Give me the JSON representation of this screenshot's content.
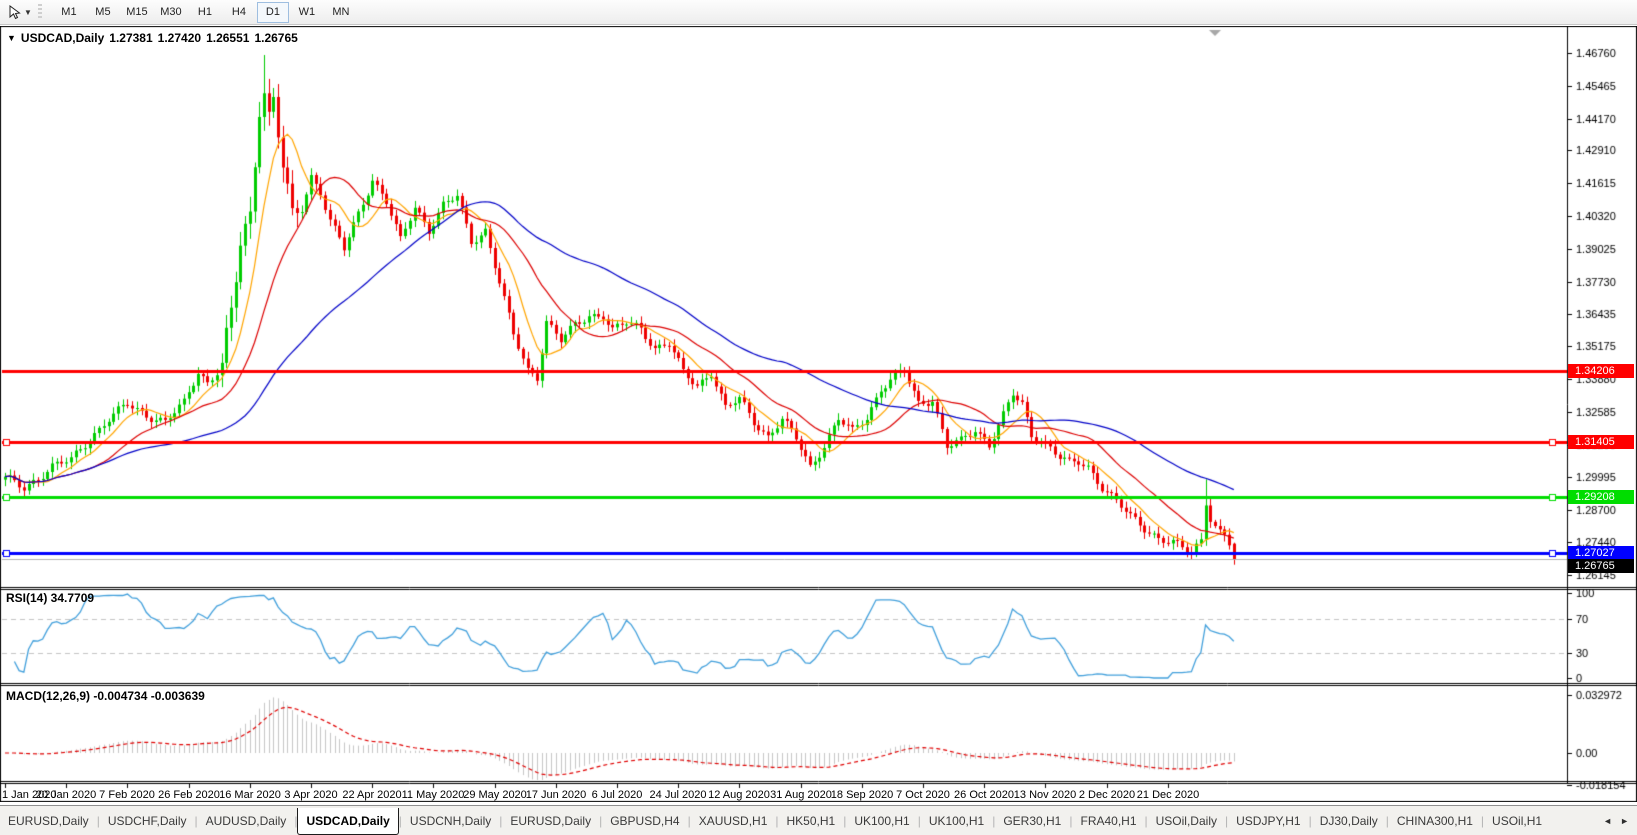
{
  "toolbar": {
    "tool_icon": "pointer-cursor",
    "timeframes": [
      {
        "label": "M1",
        "active": false
      },
      {
        "label": "M5",
        "active": false
      },
      {
        "label": "M15",
        "active": false
      },
      {
        "label": "M30",
        "active": false
      },
      {
        "label": "H1",
        "active": false
      },
      {
        "label": "H4",
        "active": false
      },
      {
        "label": "D1",
        "active": true
      },
      {
        "label": "W1",
        "active": false
      },
      {
        "label": "MN",
        "active": false
      }
    ]
  },
  "chart": {
    "symbol_period": "USDCAD,Daily",
    "open": "1.27381",
    "high": "1.27420",
    "low": "1.26551",
    "close": "1.26765"
  },
  "chart_data": {
    "type": "candlestick",
    "title": "USDCAD,Daily",
    "num_candles": 262,
    "ylim": [
      1.2571,
      1.4775
    ],
    "y_ticks": [
      "1.46760",
      "1.45465",
      "1.44170",
      "1.42910",
      "1.41615",
      "1.40320",
      "1.39025",
      "1.37730",
      "1.36435",
      "1.35175",
      "1.33880",
      "1.32585",
      "1.31290",
      "1.29995",
      "1.28700",
      "1.27440",
      "1.26145"
    ],
    "x_labels": [
      "1 Jan 2020",
      "20 Jan 2020",
      "7 Feb 2020",
      "26 Feb 2020",
      "16 Mar 2020",
      "3 Apr 2020",
      "22 Apr 2020",
      "11 May 2020",
      "29 May 2020",
      "17 Jun 2020",
      "6 Jul 2020",
      "24 Jul 2020",
      "12 Aug 2020",
      "31 Aug 2020",
      "18 Sep 2020",
      "7 Oct 2020",
      "26 Oct 2020",
      "13 Nov 2020",
      "2 Dec 2020",
      "21 Dec 2020"
    ],
    "price_anchors": [
      [
        0,
        1.2995
      ],
      [
        4,
        1.2958
      ],
      [
        10,
        1.3042
      ],
      [
        14,
        1.3068
      ],
      [
        18,
        1.3155
      ],
      [
        22,
        1.323
      ],
      [
        26,
        1.3288
      ],
      [
        30,
        1.3248
      ],
      [
        34,
        1.3218
      ],
      [
        38,
        1.3292
      ],
      [
        41,
        1.342
      ],
      [
        43,
        1.3375
      ],
      [
        46,
        1.3438
      ],
      [
        48,
        1.364
      ],
      [
        50,
        1.392
      ],
      [
        52,
        1.403
      ],
      [
        54,
        1.448
      ],
      [
        55,
        1.454
      ],
      [
        56,
        1.4425
      ],
      [
        57,
        1.449
      ],
      [
        59,
        1.423
      ],
      [
        61,
        1.401
      ],
      [
        63,
        1.406
      ],
      [
        65,
        1.419
      ],
      [
        67,
        1.413
      ],
      [
        69,
        1.4015
      ],
      [
        72,
        1.39
      ],
      [
        75,
        1.404
      ],
      [
        78,
        1.418
      ],
      [
        81,
        1.409
      ],
      [
        84,
        1.3932
      ],
      [
        87,
        1.4068
      ],
      [
        90,
        1.398
      ],
      [
        93,
        1.4075
      ],
      [
        96,
        1.4108
      ],
      [
        99,
        1.393
      ],
      [
        102,
        1.3978
      ],
      [
        105,
        1.3772
      ],
      [
        108,
        1.356
      ],
      [
        111,
        1.3422
      ],
      [
        113,
        1.34
      ],
      [
        115,
        1.3618
      ],
      [
        118,
        1.354
      ],
      [
        121,
        1.3598
      ],
      [
        124,
        1.364
      ],
      [
        127,
        1.3642
      ],
      [
        129,
        1.358
      ],
      [
        132,
        1.3608
      ],
      [
        135,
        1.359
      ],
      [
        138,
        1.3512
      ],
      [
        141,
        1.3528
      ],
      [
        144,
        1.3412
      ],
      [
        147,
        1.3362
      ],
      [
        150,
        1.3418
      ],
      [
        153,
        1.3272
      ],
      [
        156,
        1.3308
      ],
      [
        159,
        1.3222
      ],
      [
        162,
        1.3162
      ],
      [
        165,
        1.3228
      ],
      [
        168,
        1.3152
      ],
      [
        171,
        1.3042
      ],
      [
        174,
        1.3128
      ],
      [
        177,
        1.3228
      ],
      [
        180,
        1.318
      ],
      [
        183,
        1.324
      ],
      [
        186,
        1.335
      ],
      [
        189,
        1.3402
      ],
      [
        191,
        1.3415
      ],
      [
        194,
        1.3292
      ],
      [
        197,
        1.331
      ],
      [
        200,
        1.3122
      ],
      [
        203,
        1.314
      ],
      [
        206,
        1.3188
      ],
      [
        209,
        1.3132
      ],
      [
        212,
        1.3245
      ],
      [
        214,
        1.3325
      ],
      [
        216,
        1.3285
      ],
      [
        218,
        1.3165
      ],
      [
        220,
        1.3152
      ],
      [
        222,
        1.312
      ],
      [
        224,
        1.308
      ],
      [
        226,
        1.3052
      ],
      [
        228,
        1.3058
      ],
      [
        230,
        1.304
      ],
      [
        233,
        1.2965
      ],
      [
        236,
        1.2905
      ],
      [
        239,
        1.2842
      ],
      [
        242,
        1.28
      ],
      [
        245,
        1.2762
      ],
      [
        248,
        1.2742
      ],
      [
        250,
        1.2716
      ],
      [
        252,
        1.2704
      ],
      [
        254,
        1.2752
      ],
      [
        255,
        1.2905
      ],
      [
        256,
        1.2845
      ],
      [
        257,
        1.2812
      ],
      [
        258,
        1.2785
      ],
      [
        259,
        1.277
      ],
      [
        260,
        1.2738
      ],
      [
        261,
        1.26765
      ]
    ],
    "spike_highs": [
      {
        "idx": 55,
        "high": 1.4668
      },
      {
        "idx": 255,
        "high": 1.2992
      }
    ],
    "last_candle": {
      "open": 1.27381,
      "high": 1.2742,
      "low": 1.26551,
      "close": 1.26765
    },
    "moving_averages": [
      {
        "period": 8,
        "color": "#FFA500"
      },
      {
        "period": 20,
        "color": "#DD0000"
      },
      {
        "period": 52,
        "color": "#0000C8"
      }
    ],
    "hlines": [
      {
        "price": 1.34206,
        "label": "1.34206",
        "color": "#FF0000",
        "text_color": "#FFFFFF",
        "selected": false
      },
      {
        "price": 1.31405,
        "label": "1.31405",
        "color": "#FF0000",
        "text_color": "#FFFFFF",
        "selected": true
      },
      {
        "price": 1.29208,
        "label": "1.29208",
        "color": "#00DD00",
        "text_color": "#FFFFFF",
        "selected": true
      },
      {
        "price": 1.27027,
        "label": "1.27027",
        "color": "#0000FF",
        "text_color": "#FFFFFF",
        "selected": true
      }
    ],
    "current_price": {
      "value": 1.26765,
      "label": "1.26765"
    },
    "rsi": {
      "label": "RSI(14) 34.7709",
      "period": 14,
      "value": 34.7709,
      "ticks": [
        "100",
        "70",
        "30",
        "0"
      ],
      "tick_values": [
        100,
        70,
        30,
        0
      ],
      "levels": [
        70,
        30
      ]
    },
    "macd": {
      "label": "MACD(12,26,9) -0.004734 -0.003639",
      "fast": 12,
      "slow": 26,
      "signal": 9,
      "value": -0.004734,
      "signal_value": -0.003639,
      "ticks": [
        "0.032972",
        "0.00",
        "-0.018154"
      ],
      "tick_values": [
        0.032972,
        0,
        -0.018154
      ]
    },
    "colors": {
      "bull": "#00CC00",
      "bear": "#EE0000",
      "rsi_line": "#42A0DC",
      "level_dash": "#C4C4C4",
      "macd_hist": "#C6C6C6",
      "macd_signal": "#E00000",
      "current_price_line": "#B4B4B4",
      "shift_triangle": "#A8A8A8"
    }
  },
  "tabs": {
    "scroll_left": "◄",
    "scroll_right": "►",
    "items": [
      {
        "label": "EURUSD,Daily",
        "active": false
      },
      {
        "label": "USDCHF,Daily",
        "active": false
      },
      {
        "label": "AUDUSD,Daily",
        "active": false
      },
      {
        "label": "USDCAD,Daily",
        "active": true
      },
      {
        "label": "USDCNH,Daily",
        "active": false
      },
      {
        "label": "EURUSD,Daily",
        "active": false
      },
      {
        "label": "GBPUSD,H4",
        "active": false
      },
      {
        "label": "XAUUSD,H1",
        "active": false
      },
      {
        "label": "HK50,H1",
        "active": false
      },
      {
        "label": "UK100,H1",
        "active": false
      },
      {
        "label": "UK100,H1",
        "active": false
      },
      {
        "label": "GER30,H1",
        "active": false
      },
      {
        "label": "FRA40,H1",
        "active": false
      },
      {
        "label": "USOil,Daily",
        "active": false
      },
      {
        "label": "USDJPY,H1",
        "active": false
      },
      {
        "label": "DJ30,Daily",
        "active": false
      },
      {
        "label": "CHINA300,H1",
        "active": false
      },
      {
        "label": "USOil,H1",
        "active": false
      }
    ]
  }
}
